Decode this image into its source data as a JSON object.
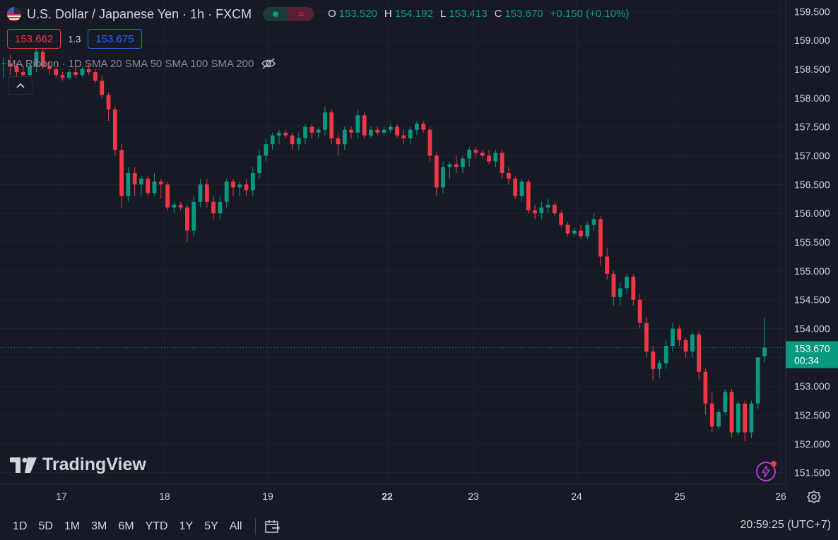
{
  "header": {
    "symbol_title": "U.S. Dollar / Japanese Yen · 1h · FXCM",
    "ohlc": [
      {
        "key": "O",
        "value": "153.520"
      },
      {
        "key": "H",
        "value": "154.192"
      },
      {
        "key": "L",
        "value": "153.413"
      },
      {
        "key": "C",
        "value": "153.670"
      }
    ],
    "change": "+0.150 (+0.10%)",
    "sell_price": "153.662",
    "spread": "1.3",
    "buy_price": "153.675",
    "indicator_label": "MA Ribbon · 1D SMA 20 SMA 50 SMA 100 SMA 200"
  },
  "logo_text": "TradingView",
  "bottom_bar": {
    "ranges": [
      "1D",
      "5D",
      "1M",
      "3M",
      "6M",
      "YTD",
      "1Y",
      "5Y",
      "All"
    ],
    "clock": "20:59:25 (UTC+7)"
  },
  "colors": {
    "up": "#089981",
    "down": "#f23645",
    "background": "#161a25",
    "grid": "#1f2330",
    "axis_text": "#d1d4dc"
  },
  "chart_data": {
    "type": "candlestick",
    "title": "U.S. Dollar / Japanese Yen · 1h · FXCM",
    "y_ticks": [
      "151.500",
      "152.000",
      "152.500",
      "153.000",
      "153.500",
      "154.000",
      "154.500",
      "155.000",
      "155.500",
      "156.000",
      "156.500",
      "157.000",
      "157.500",
      "158.000",
      "158.500",
      "159.000",
      "159.500"
    ],
    "ylim": [
      151.3,
      159.7
    ],
    "x_ticks": [
      {
        "label": "17",
        "bold": false
      },
      {
        "label": "18",
        "bold": false
      },
      {
        "label": "19",
        "bold": false
      },
      {
        "label": "22",
        "bold": true
      },
      {
        "label": "23",
        "bold": false
      },
      {
        "label": "24",
        "bold": false
      },
      {
        "label": "25",
        "bold": false
      },
      {
        "label": "26",
        "bold": false
      }
    ],
    "last_price": "153.670",
    "countdown": "00:34",
    "candles": [
      [
        158.6,
        158.7,
        158.35,
        158.6
      ],
      [
        158.6,
        158.75,
        158.4,
        158.55
      ],
      [
        158.55,
        158.6,
        158.3,
        158.45
      ],
      [
        158.45,
        158.55,
        158.3,
        158.4
      ],
      [
        158.4,
        158.6,
        158.3,
        158.55
      ],
      [
        158.55,
        158.85,
        158.45,
        158.8
      ],
      [
        158.8,
        158.85,
        158.5,
        158.55
      ],
      [
        158.55,
        158.65,
        158.4,
        158.5
      ],
      [
        158.5,
        158.55,
        158.35,
        158.4
      ],
      [
        158.4,
        158.45,
        158.3,
        158.35
      ],
      [
        158.35,
        158.5,
        158.3,
        158.45
      ],
      [
        158.45,
        158.55,
        158.35,
        158.4
      ],
      [
        158.4,
        158.55,
        158.35,
        158.5
      ],
      [
        158.5,
        158.6,
        158.4,
        158.45
      ],
      [
        158.45,
        158.5,
        158.25,
        158.3
      ],
      [
        158.3,
        158.4,
        158.0,
        158.05
      ],
      [
        158.05,
        158.1,
        157.6,
        157.8
      ],
      [
        157.8,
        157.85,
        157.0,
        157.1
      ],
      [
        157.1,
        157.2,
        156.1,
        156.3
      ],
      [
        156.3,
        156.8,
        156.2,
        156.7
      ],
      [
        156.7,
        156.8,
        156.3,
        156.5
      ],
      [
        156.5,
        156.65,
        156.3,
        156.6
      ],
      [
        156.6,
        156.65,
        156.3,
        156.35
      ],
      [
        156.35,
        156.7,
        156.3,
        156.55
      ],
      [
        156.55,
        156.6,
        156.25,
        156.5
      ],
      [
        156.5,
        156.55,
        156.05,
        156.1
      ],
      [
        156.1,
        156.2,
        156.0,
        156.15
      ],
      [
        156.15,
        156.2,
        156.05,
        156.1
      ],
      [
        156.1,
        156.15,
        155.5,
        155.7
      ],
      [
        155.7,
        156.3,
        155.6,
        156.2
      ],
      [
        156.2,
        156.6,
        156.1,
        156.5
      ],
      [
        156.5,
        156.6,
        156.1,
        156.2
      ],
      [
        156.2,
        156.3,
        155.9,
        156.0
      ],
      [
        156.0,
        156.3,
        155.9,
        156.2
      ],
      [
        156.2,
        156.6,
        156.1,
        156.55
      ],
      [
        156.55,
        156.6,
        156.3,
        156.45
      ],
      [
        156.45,
        156.55,
        156.3,
        156.5
      ],
      [
        156.5,
        156.6,
        156.3,
        156.4
      ],
      [
        156.4,
        156.8,
        156.3,
        156.7
      ],
      [
        156.7,
        157.1,
        156.6,
        157.0
      ],
      [
        157.0,
        157.3,
        156.9,
        157.2
      ],
      [
        157.2,
        157.4,
        157.1,
        157.35
      ],
      [
        157.35,
        157.45,
        157.2,
        157.4
      ],
      [
        157.4,
        157.45,
        157.3,
        157.35
      ],
      [
        157.35,
        157.4,
        157.1,
        157.2
      ],
      [
        157.2,
        157.4,
        157.1,
        157.3
      ],
      [
        157.3,
        157.55,
        157.2,
        157.5
      ],
      [
        157.5,
        157.55,
        157.3,
        157.4
      ],
      [
        157.4,
        157.5,
        157.3,
        157.45
      ],
      [
        157.45,
        157.85,
        157.35,
        157.75
      ],
      [
        157.75,
        157.8,
        157.2,
        157.3
      ],
      [
        157.3,
        157.4,
        157.0,
        157.2
      ],
      [
        157.2,
        157.5,
        157.1,
        157.45
      ],
      [
        157.45,
        157.5,
        157.3,
        157.4
      ],
      [
        157.4,
        157.8,
        157.3,
        157.7
      ],
      [
        157.7,
        157.75,
        157.3,
        157.35
      ],
      [
        157.35,
        157.5,
        157.3,
        157.45
      ],
      [
        157.45,
        157.5,
        157.35,
        157.4
      ],
      [
        157.4,
        157.5,
        157.35,
        157.45
      ],
      [
        157.45,
        157.55,
        157.4,
        157.5
      ],
      [
        157.5,
        157.55,
        157.3,
        157.35
      ],
      [
        157.35,
        157.45,
        157.2,
        157.3
      ],
      [
        157.3,
        157.5,
        157.2,
        157.45
      ],
      [
        157.45,
        157.6,
        157.35,
        157.55
      ],
      [
        157.55,
        157.6,
        157.4,
        157.45
      ],
      [
        157.45,
        157.5,
        156.9,
        157.0
      ],
      [
        157.0,
        157.05,
        156.3,
        156.45
      ],
      [
        156.45,
        156.9,
        156.35,
        156.8
      ],
      [
        156.8,
        156.9,
        156.6,
        156.85
      ],
      [
        156.85,
        157.0,
        156.7,
        156.8
      ],
      [
        156.8,
        157.0,
        156.7,
        156.95
      ],
      [
        156.95,
        157.15,
        156.8,
        157.1
      ],
      [
        157.1,
        157.15,
        156.95,
        157.05
      ],
      [
        157.05,
        157.1,
        156.95,
        157.0
      ],
      [
        157.0,
        157.1,
        156.85,
        156.9
      ],
      [
        156.9,
        157.1,
        156.8,
        157.05
      ],
      [
        157.05,
        157.1,
        156.6,
        156.7
      ],
      [
        156.7,
        156.8,
        156.5,
        156.6
      ],
      [
        156.6,
        156.65,
        156.25,
        156.3
      ],
      [
        156.3,
        156.6,
        156.2,
        156.55
      ],
      [
        156.55,
        156.6,
        156.0,
        156.05
      ],
      [
        156.05,
        156.15,
        155.9,
        156.0
      ],
      [
        156.0,
        156.2,
        155.9,
        156.1
      ],
      [
        156.1,
        156.25,
        156.0,
        156.15
      ],
      [
        156.15,
        156.2,
        155.95,
        156.0
      ],
      [
        156.0,
        156.05,
        155.75,
        155.8
      ],
      [
        155.8,
        155.85,
        155.6,
        155.65
      ],
      [
        155.65,
        155.75,
        155.6,
        155.7
      ],
      [
        155.7,
        155.8,
        155.55,
        155.6
      ],
      [
        155.6,
        155.85,
        155.55,
        155.8
      ],
      [
        155.8,
        156.0,
        155.7,
        155.9
      ],
      [
        155.9,
        155.95,
        155.1,
        155.25
      ],
      [
        155.25,
        155.4,
        154.85,
        154.95
      ],
      [
        154.95,
        155.0,
        154.4,
        154.55
      ],
      [
        154.55,
        154.8,
        154.4,
        154.7
      ],
      [
        154.7,
        154.95,
        154.6,
        154.9
      ],
      [
        154.9,
        154.95,
        154.4,
        154.5
      ],
      [
        154.5,
        154.6,
        154.0,
        154.1
      ],
      [
        154.1,
        154.2,
        153.5,
        153.6
      ],
      [
        153.6,
        153.7,
        153.1,
        153.3
      ],
      [
        153.3,
        153.45,
        153.15,
        153.4
      ],
      [
        153.4,
        153.8,
        153.3,
        153.7
      ],
      [
        153.7,
        154.1,
        153.6,
        154.0
      ],
      [
        154.0,
        154.05,
        153.7,
        153.8
      ],
      [
        153.8,
        153.85,
        153.5,
        153.6
      ],
      [
        153.6,
        153.95,
        153.5,
        153.9
      ],
      [
        153.9,
        153.95,
        153.1,
        153.25
      ],
      [
        153.25,
        153.3,
        152.5,
        152.7
      ],
      [
        152.7,
        152.9,
        152.2,
        152.3
      ],
      [
        152.3,
        152.6,
        152.25,
        152.55
      ],
      [
        152.55,
        152.95,
        152.5,
        152.9
      ],
      [
        152.9,
        152.95,
        152.1,
        152.2
      ],
      [
        152.2,
        152.75,
        152.15,
        152.7
      ],
      [
        152.7,
        152.75,
        152.05,
        152.2
      ],
      [
        152.2,
        152.75,
        152.1,
        152.7
      ],
      [
        152.7,
        153.5,
        152.6,
        153.5
      ],
      [
        153.52,
        154.19,
        153.41,
        153.67
      ]
    ]
  }
}
